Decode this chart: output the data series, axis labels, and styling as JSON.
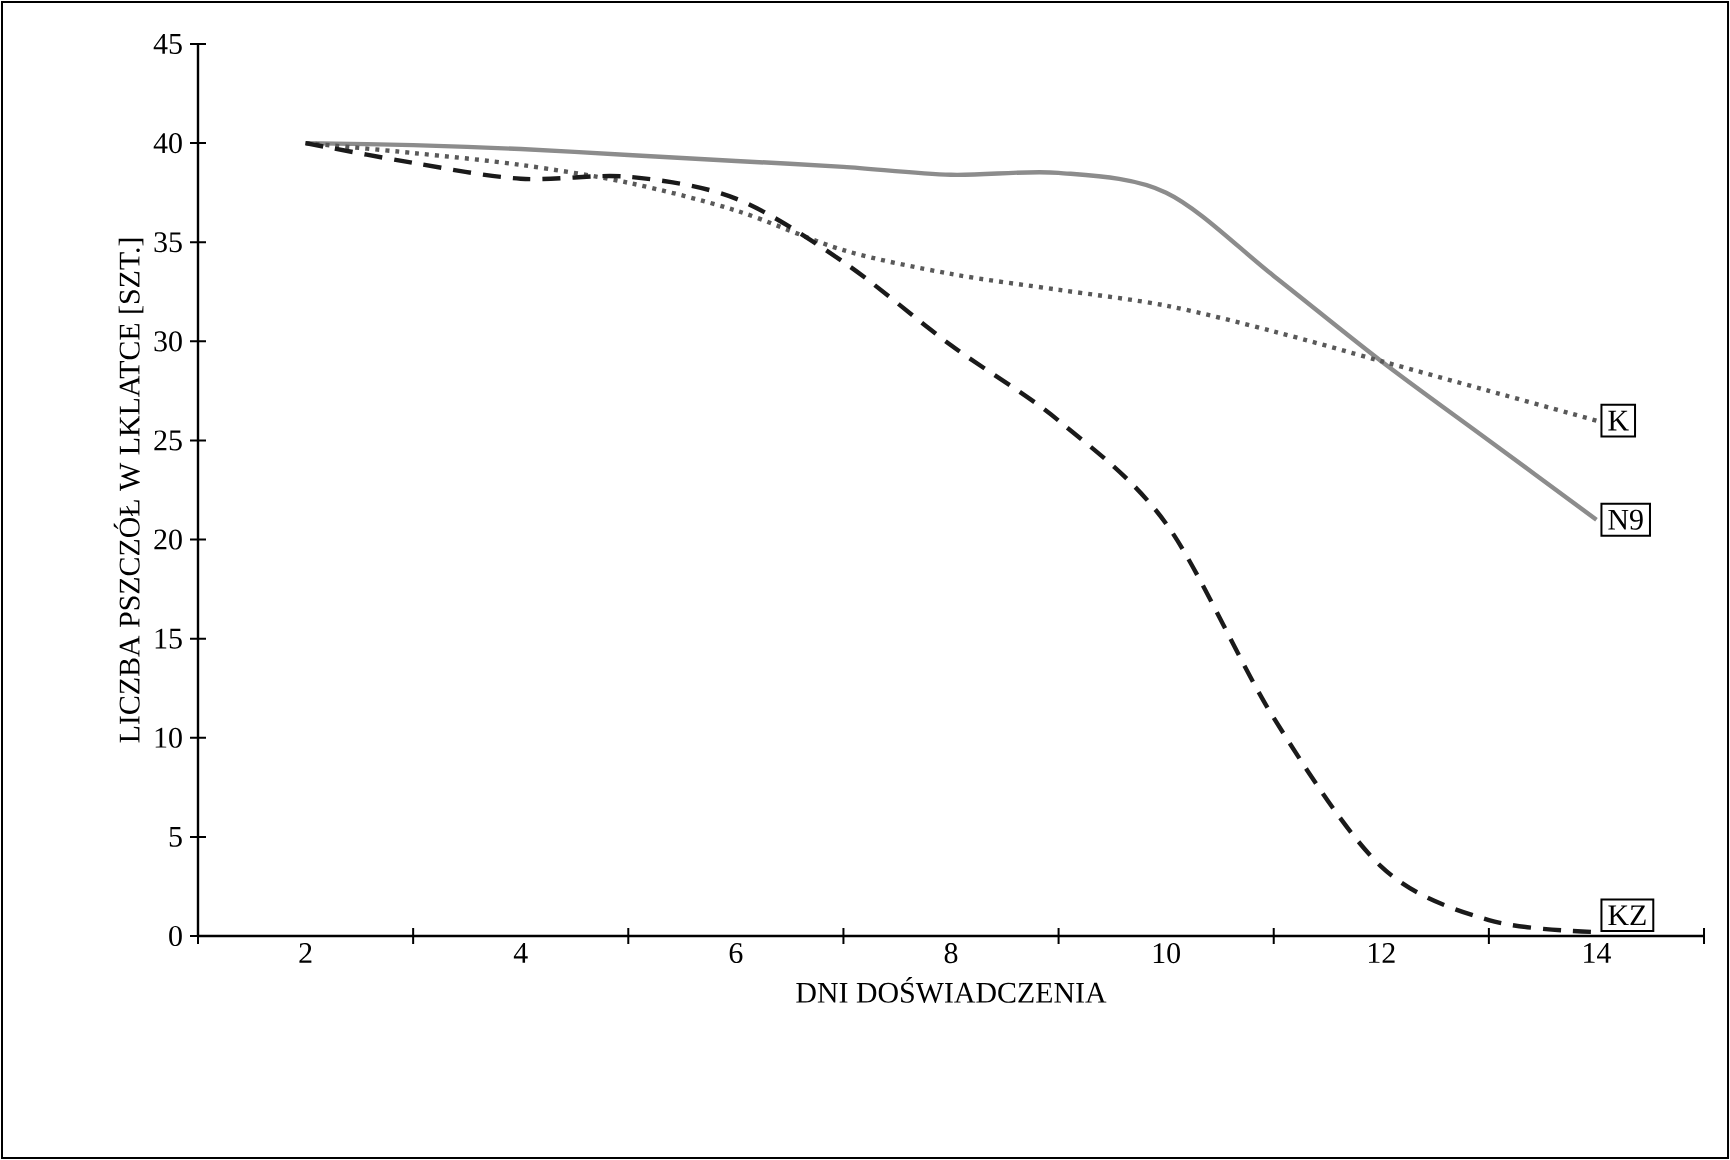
{
  "chart_data": {
    "type": "line",
    "xlabel": "DNI DOŚWIADCZENIA",
    "ylabel": "LICZBA PSZCZÓŁ W LKLATCE [SZT.]",
    "x": [
      2,
      3,
      4,
      5,
      6,
      7,
      8,
      9,
      10,
      11,
      12,
      13,
      14
    ],
    "series": [
      {
        "name": "N9",
        "color": "#8c8c8c",
        "line_style": "solid",
        "values": [
          40,
          39.9,
          39.7,
          39.4,
          39.1,
          38.8,
          38.4,
          38.5,
          37.5,
          33.3,
          29,
          25,
          21
        ]
      },
      {
        "name": "K",
        "color": "#595959",
        "line_style": "dotted",
        "values": [
          40,
          39.5,
          38.9,
          38.0,
          36.6,
          34.6,
          33.4,
          32.6,
          31.8,
          30.5,
          29.0,
          27.5,
          26
        ]
      },
      {
        "name": "KZ",
        "color": "#1a1a1a",
        "line_style": "dashed",
        "values": [
          40,
          39,
          38.2,
          38.3,
          37.2,
          34,
          29.8,
          26,
          20.8,
          11,
          3.5,
          0.8,
          0.2
        ]
      }
    ],
    "xlim": [
      1,
      15
    ],
    "xticks": [
      {
        "value": 1,
        "label": null
      },
      2,
      {
        "value": 3,
        "label": null
      },
      4,
      {
        "value": 5,
        "label": null
      },
      6,
      {
        "value": 7,
        "label": null
      },
      8,
      {
        "value": 9,
        "label": null
      },
      10,
      {
        "value": 11,
        "label": null
      },
      12,
      {
        "value": 13,
        "label": null
      },
      14,
      {
        "value": 15,
        "label": null
      }
    ],
    "ylim": [
      0,
      45
    ],
    "yticks": [
      0,
      5,
      10,
      15,
      20,
      25,
      30,
      35,
      40,
      45
    ],
    "grid": false,
    "marker": "none"
  }
}
